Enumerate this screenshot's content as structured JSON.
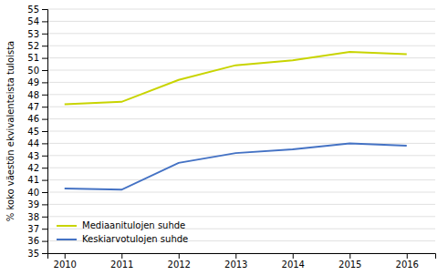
{
  "chart_data": {
    "type": "line",
    "ylabel": "% koko väestön ekvivalenteista tuloista",
    "x": [
      2010,
      2011,
      2012,
      2013,
      2014,
      2015,
      2016
    ],
    "series": [
      {
        "name": "Mediaanitulojen suhde",
        "color": "#c8d400",
        "values": [
          47.2,
          47.4,
          49.2,
          50.4,
          50.8,
          51.5,
          51.3
        ]
      },
      {
        "name": "Keskiarvotulojen suhde",
        "color": "#4472c4",
        "values": [
          40.3,
          40.2,
          42.4,
          43.2,
          43.5,
          44.0,
          43.8
        ]
      }
    ],
    "xlim": [
      2009.7,
      2016.5
    ],
    "xticks": [
      2010,
      2011,
      2012,
      2013,
      2014,
      2015,
      2016
    ],
    "ylim": [
      35,
      55
    ],
    "yticks": [
      35,
      36,
      37,
      38,
      39,
      40,
      41,
      42,
      43,
      44,
      45,
      46,
      47,
      48,
      49,
      50,
      51,
      52,
      53,
      54,
      55
    ],
    "grid": "y",
    "legend": "lower left"
  }
}
